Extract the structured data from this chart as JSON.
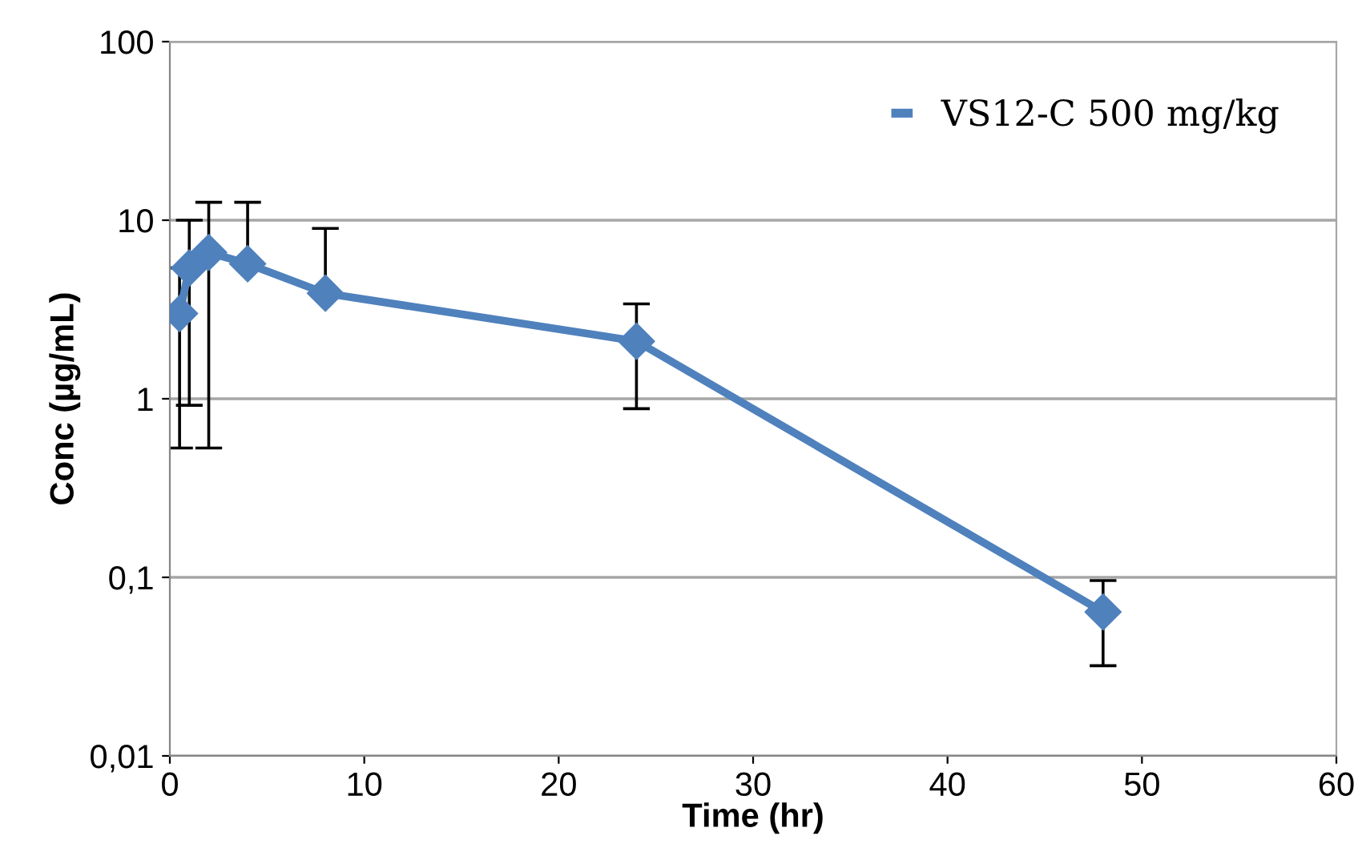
{
  "chart_data": {
    "type": "line",
    "xlabel": "Time (hr)",
    "ylabel": "Conc (µg/mL)",
    "log": "y",
    "x": [
      0.5,
      1,
      2,
      4,
      8,
      24,
      48
    ],
    "series": [
      {
        "name": "VS12-C 500 mg/kg",
        "color": "#4f81bd",
        "values": [
          3.0,
          5.4,
          6.6,
          5.7,
          3.9,
          2.1,
          0.064
        ],
        "errors": [
          [
            0.53,
            5.4
          ],
          [
            0.92,
            10
          ],
          [
            0.53,
            12.6
          ],
          [
            5.7,
            12.6
          ],
          [
            3.9,
            9.0
          ],
          [
            0.88,
            3.4
          ],
          [
            0.032,
            0.096
          ]
        ]
      }
    ],
    "xlim": [
      0,
      60
    ],
    "xticks": [
      0,
      10,
      20,
      30,
      40,
      50,
      60
    ],
    "ylim": [
      0.01,
      100
    ],
    "yticks": [
      {
        "value": 0.01,
        "label": "0,01"
      },
      {
        "value": 0.1,
        "label": "0,1"
      },
      1,
      10,
      100
    ],
    "grid": "y",
    "legend": "top right",
    "marker": "diamond",
    "line_style": "solid"
  }
}
